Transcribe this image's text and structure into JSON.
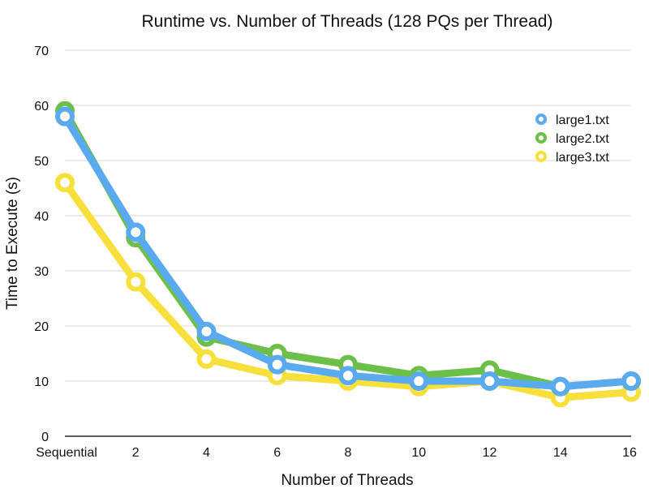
{
  "chart_data": {
    "type": "line",
    "title": "Runtime vs. Number of Threads (128 PQs per Thread)",
    "xlabel": "Number of Threads",
    "ylabel": "Time to Execute (s)",
    "categories": [
      "Sequential",
      "2",
      "4",
      "6",
      "8",
      "10",
      "12",
      "14",
      "16"
    ],
    "ylim": [
      0,
      70
    ],
    "yticks": [
      0,
      10,
      20,
      30,
      40,
      50,
      60,
      70
    ],
    "grid": true,
    "legend_position": "top-right",
    "series": [
      {
        "name": "large1.txt",
        "color": "#5aaaf0",
        "values": [
          58,
          37,
          19,
          13,
          11,
          10,
          10,
          9,
          10
        ]
      },
      {
        "name": "large2.txt",
        "color": "#6cc04a",
        "values": [
          59,
          36,
          18,
          15,
          13,
          11,
          12,
          9,
          10
        ]
      },
      {
        "name": "large3.txt",
        "color": "#f7df3c",
        "values": [
          46,
          28,
          14,
          11,
          10,
          9,
          10,
          7,
          8
        ]
      }
    ]
  }
}
